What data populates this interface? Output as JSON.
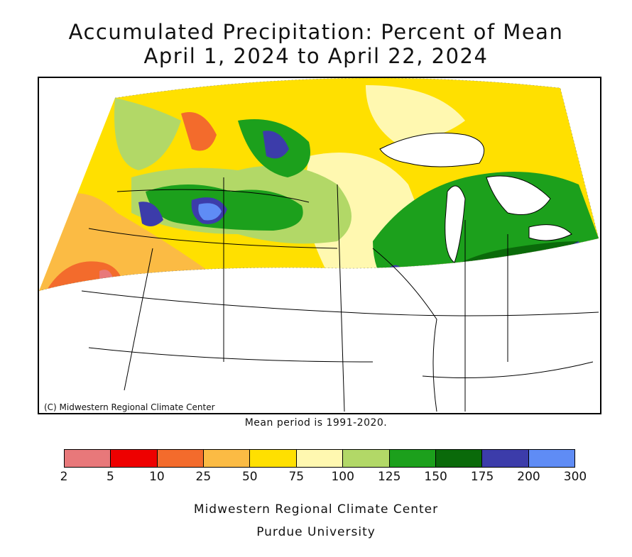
{
  "title_line1": "Accumulated Precipitation: Percent of Mean",
  "title_line2": "April 1, 2024 to April 22, 2024",
  "copyright": "(C) Midwestern Regional Climate Center",
  "mean_period": "Mean period is 1991-2020.",
  "legend": {
    "colors": [
      "#e8787a",
      "#ee0000",
      "#f36b2c",
      "#fbbb44",
      "#ffe000",
      "#fff8b0",
      "#b2d867",
      "#1ca01c",
      "#0a6a0a",
      "#3c3caa",
      "#5f8cf5"
    ],
    "labels": [
      "2",
      "5",
      "10",
      "25",
      "50",
      "75",
      "100",
      "125",
      "150",
      "175",
      "200",
      "300"
    ]
  },
  "credit_line1": "Midwestern Regional Climate Center",
  "credit_line2": "Purdue University"
}
